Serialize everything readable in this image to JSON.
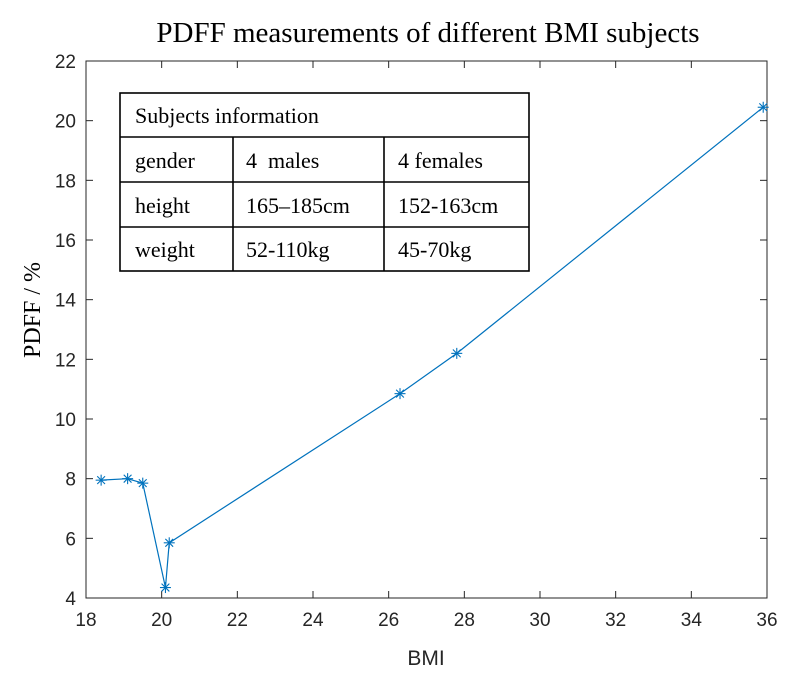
{
  "chart_data": {
    "type": "line",
    "title": "PDFF measurements of different BMI subjects",
    "xlabel": "BMI",
    "ylabel": "PDFF / %",
    "xlim": [
      18,
      36
    ],
    "ylim": [
      4,
      22
    ],
    "xticks": [
      18,
      20,
      22,
      24,
      26,
      28,
      30,
      32,
      34,
      36
    ],
    "yticks": [
      4,
      6,
      8,
      10,
      12,
      14,
      16,
      18,
      20,
      22
    ],
    "grid": false,
    "series": [
      {
        "name": "PDFF",
        "color": "#0072BD",
        "marker": "asterisk",
        "x": [
          18.4,
          19.1,
          19.5,
          20.1,
          20.2,
          26.3,
          27.8,
          35.9
        ],
        "y": [
          7.95,
          8.0,
          7.85,
          4.35,
          5.85,
          10.85,
          12.2,
          20.45
        ]
      }
    ]
  },
  "info_table": {
    "title": "Subjects information",
    "rows": [
      [
        "gender",
        "4  males",
        "4 females"
      ],
      [
        "height",
        "165–185cm",
        "152-163cm"
      ],
      [
        "weight",
        "52-110kg",
        "45-70kg"
      ]
    ]
  }
}
